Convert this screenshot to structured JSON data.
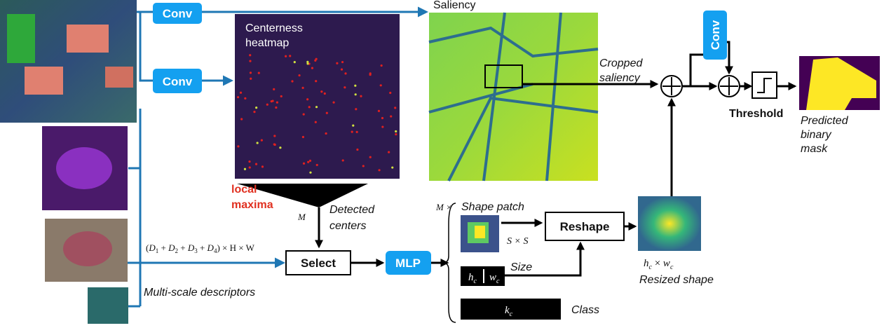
{
  "conv_top": "Conv",
  "conv_mid": "Conv",
  "conv_right": "Conv",
  "saliency": "Saliency",
  "heatmap": [
    "Centerness",
    "heatmap"
  ],
  "cropped": [
    "Cropped",
    "saliency"
  ],
  "threshold": "Threshold",
  "predicted": [
    "Predicted",
    "binary",
    "mask"
  ],
  "local_maxima": [
    "local",
    "maxima"
  ],
  "m": "M",
  "detected": [
    "Detected",
    "centers"
  ],
  "dims": {
    "open": "(",
    "d1": "D",
    "s1": "1",
    "p1": " + ",
    "d2": "D",
    "s2": "2",
    "p2": " + ",
    "d3": "D",
    "s3": "3",
    "p3": " + ",
    "d4": "D",
    "s4": "4",
    "rest": ") × H × W"
  },
  "select": "Select",
  "mlp": "MLP",
  "m_times": "M ×",
  "shape_patch": "Shape patch",
  "sxs": "S × S",
  "reshape": "Reshape",
  "size": "Size",
  "h": "h",
  "hc": "c",
  "w": "w",
  "wc": "c",
  "resized_dims": {
    "h": "h",
    "hs": "c",
    "x": " × ",
    "w": "w",
    "ws": "c"
  },
  "resized": "Resized shape",
  "descriptors": "Multi-scale descriptors",
  "k": "k",
  "kc": "c",
  "class": "Class"
}
